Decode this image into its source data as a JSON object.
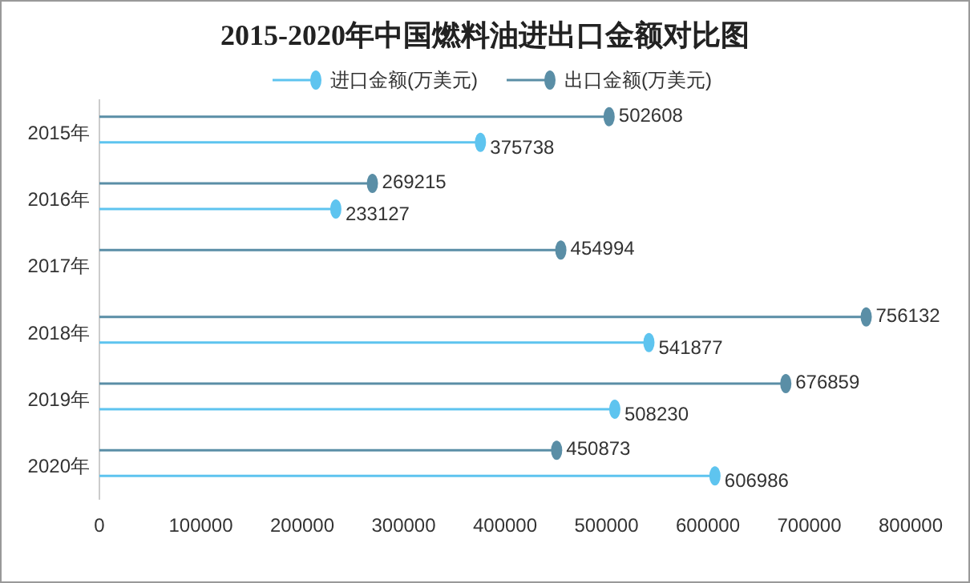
{
  "chart_data": {
    "type": "lollipop",
    "title": "2015-2020年中国燃料油进出口金额对比图",
    "orientation": "horizontal",
    "categories": [
      "2015年",
      "2016年",
      "2017年",
      "2018年",
      "2019年",
      "2020年"
    ],
    "series": [
      {
        "name": "进口金额(万美元)",
        "color": "#5ec4ef",
        "values": [
          375738,
          233127,
          null,
          541877,
          508230,
          606986
        ]
      },
      {
        "name": "出口金额(万美元)",
        "color": "#5a8ea6",
        "values": [
          502608,
          269215,
          454994,
          756132,
          676859,
          450873
        ]
      }
    ],
    "xlim": [
      0,
      800000
    ],
    "xticks": [
      0,
      100000,
      200000,
      300000,
      400000,
      500000,
      600000,
      700000,
      800000
    ],
    "data_labels": true,
    "legend": "top",
    "grid": false
  }
}
